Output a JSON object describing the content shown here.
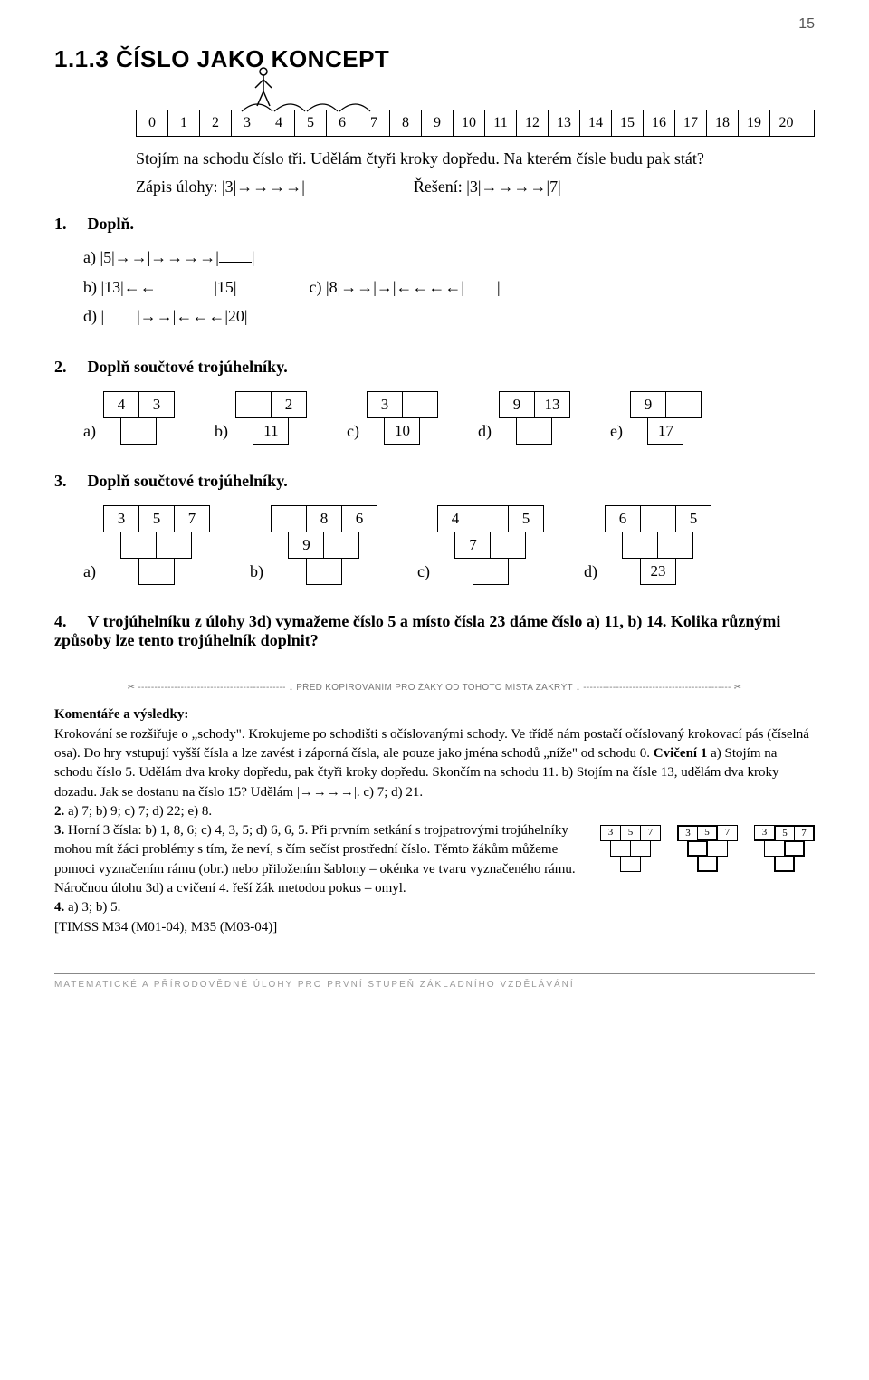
{
  "pageNumber": "15",
  "heading": "1.1.3 ČÍSLO JAKO KONCEPT",
  "numberLine": [
    "0",
    "1",
    "2",
    "3",
    "4",
    "5",
    "6",
    "7",
    "8",
    "9",
    "10",
    "11",
    "12",
    "13",
    "14",
    "15",
    "16",
    "17",
    "18",
    "19",
    "20"
  ],
  "intro1": "Stojím na schodu číslo tři. Udělám čtyři kroky dopředu. Na kterém čísle budu pak stát?",
  "zapisLabel": "Zápis úlohy: |3|→→→→|",
  "reseniLabel": "Řešení: |3|→→→→|7|",
  "task1": {
    "title": "Doplň.",
    "a": "a) |5|→→|→→→→|",
    "b": "b) |13|←←|",
    "bTail": "|15|",
    "c": "c) |8|→→|→|←←←←|",
    "d": "d) |",
    "dTail": "|→→|←←←|20|"
  },
  "task2": {
    "title": "Doplň součtové trojúhelníky.",
    "items": [
      {
        "label": "a)",
        "top": [
          "4",
          "3"
        ],
        "bot": [
          ""
        ]
      },
      {
        "label": "b)",
        "top": [
          "",
          "2"
        ],
        "bot": [
          "11"
        ]
      },
      {
        "label": "c)",
        "top": [
          "3",
          ""
        ],
        "bot": [
          "10"
        ]
      },
      {
        "label": "d)",
        "top": [
          "9",
          "13"
        ],
        "bot": [
          ""
        ]
      },
      {
        "label": "e)",
        "top": [
          "9",
          ""
        ],
        "bot": [
          "17"
        ]
      }
    ]
  },
  "task3": {
    "title": "Doplň součtové trojúhelníky.",
    "items": [
      {
        "label": "a)",
        "r1": [
          "3",
          "5",
          "7"
        ],
        "r2": [
          "",
          ""
        ],
        "r3": [
          ""
        ]
      },
      {
        "label": "b)",
        "r1": [
          "",
          "8",
          "6"
        ],
        "r2": [
          "9",
          ""
        ],
        "r3": [
          ""
        ]
      },
      {
        "label": "c)",
        "r1": [
          "4",
          "",
          "5"
        ],
        "r2": [
          "7",
          ""
        ],
        "r3": [
          ""
        ]
      },
      {
        "label": "d)",
        "r1": [
          "6",
          "",
          "5"
        ],
        "r2": [
          "",
          ""
        ],
        "r3": [
          "23"
        ]
      }
    ]
  },
  "task4": "V trojúhelníku z úlohy 3d) vymažeme číslo 5 a místo čísla 23 dáme číslo a) 11, b) 14. Kolika různými způsoby lze tento trojúhelník doplnit?",
  "cutline": "✂ --------------------------------------------- ↓ PŘED KOPÍROVÁNÍM PRO ŽÁKY OD TOHOTO MÍSTA ZAKRÝT ↓ --------------------------------------------- ✂",
  "commentsTitle": "Komentáře a výsledky:",
  "commentsP1": "Krokování se rozšiřuje o „schody\". Krokujeme po schodišti s očíslovanými schody. Ve třídě nám postačí očíslovaný krokovací pás (číselná osa). Do hry vstupují vyšší čísla a lze zavést i záporná čísla, ale pouze jako jména schodů „níže\" od schodu 0. ",
  "commentsCv1a": "Cvičení 1",
  "commentsCv1b": " a) Stojím na schodu číslo 5. Udělám dva kroky dopředu, pak čtyři kroky dopředu. Skončím na schodu 11.  b) Stojím na čísle 13, udělám dva kroky dozadu. Jak se dostanu na číslo 15? Udělám |→→→→|.  c) 7; d) 21.",
  "comments2": "2.",
  "comments2b": " a) 7; b) 9; c) 7; d) 22; e) 8.",
  "comments3": "3.",
  "comments3b": " Horní 3 čísla: b) 1, 8, 6; c) 4, 3, 5; d) 6, 6, 5. Při prvním setkání s trojpatrovými trojúhelníky mohou mít žáci problémy s tím, že neví, s čím sečíst prostřední číslo. Těmto žákům můžeme pomoci vyznačením rámu (obr.) nebo přiložením šablony – okénka ve tvaru vyznačeného rámu. Náročnou úlohu 3d) a cvičení 4. řeší žák metodou pokus – omyl.",
  "comments4": "4.",
  "comments4b": " a) 3;  b) 5.",
  "timss": "[TIMSS M34 (M01-04), M35 (M03-04)]",
  "miniTop": [
    "3",
    "5",
    "7"
  ],
  "footer": "MATEMATICKÉ A PŘÍRODOVĚDNÉ ÚLOHY PRO PRVNÍ STUPEŇ ZÁKLADNÍHO VZDĚLÁVÁNÍ"
}
